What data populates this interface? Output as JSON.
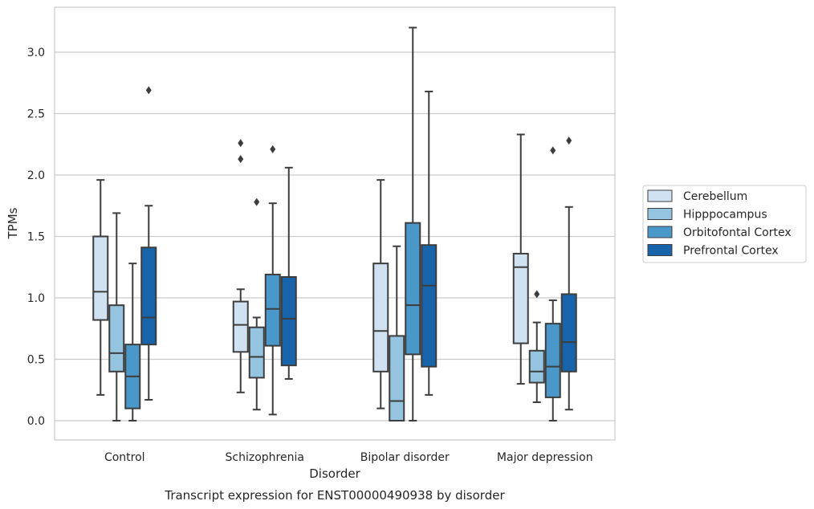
{
  "chart_data": {
    "type": "box",
    "title": "Transcript expression for ENST00000490938 by disorder",
    "xlabel": "Disorder",
    "ylabel": "TPMs",
    "ylim": [
      -0.15,
      3.35
    ],
    "yticks": [
      "0.0",
      "0.5",
      "1.0",
      "1.5",
      "2.0",
      "2.5",
      "3.0"
    ],
    "grid": "horizontal",
    "legend_position": "right",
    "categories": [
      "Control",
      "Schizophrenia",
      "Bipolar disorder",
      "Major depression"
    ],
    "series": [
      {
        "name": "Cerebellum",
        "color": "#d0e1f2",
        "boxes": [
          {
            "whislo": 0.21,
            "q1": 0.82,
            "med": 1.05,
            "q3": 1.5,
            "whishi": 1.96,
            "fliers": []
          },
          {
            "whislo": 0.23,
            "q1": 0.56,
            "med": 0.78,
            "q3": 0.97,
            "whishi": 1.07,
            "fliers": [
              2.13,
              2.26
            ]
          },
          {
            "whislo": 0.1,
            "q1": 0.4,
            "med": 0.73,
            "q3": 1.28,
            "whishi": 1.96,
            "fliers": []
          },
          {
            "whislo": 0.3,
            "q1": 0.63,
            "med": 1.25,
            "q3": 1.36,
            "whishi": 2.33,
            "fliers": []
          }
        ]
      },
      {
        "name": "Hipppocampus",
        "color": "#94c4df",
        "boxes": [
          {
            "whislo": 0.0,
            "q1": 0.4,
            "med": 0.55,
            "q3": 0.94,
            "whishi": 1.69,
            "fliers": []
          },
          {
            "whislo": 0.09,
            "q1": 0.35,
            "med": 0.52,
            "q3": 0.76,
            "whishi": 0.84,
            "fliers": [
              1.78
            ]
          },
          {
            "whislo": 0.0,
            "q1": 0.0,
            "med": 0.16,
            "q3": 0.69,
            "whishi": 1.42,
            "fliers": []
          },
          {
            "whislo": 0.15,
            "q1": 0.31,
            "med": 0.4,
            "q3": 0.57,
            "whishi": 0.8,
            "fliers": [
              1.03
            ]
          }
        ]
      },
      {
        "name": "Orbitofontal Cortex",
        "color": "#4a98c9",
        "boxes": [
          {
            "whislo": 0.0,
            "q1": 0.1,
            "med": 0.36,
            "q3": 0.62,
            "whishi": 1.28,
            "fliers": []
          },
          {
            "whislo": 0.05,
            "q1": 0.61,
            "med": 0.91,
            "q3": 1.19,
            "whishi": 1.77,
            "fliers": [
              2.21
            ]
          },
          {
            "whislo": 0.0,
            "q1": 0.54,
            "med": 0.94,
            "q3": 1.61,
            "whishi": 3.2,
            "fliers": []
          },
          {
            "whislo": 0.0,
            "q1": 0.19,
            "med": 0.44,
            "q3": 0.79,
            "whishi": 0.98,
            "fliers": [
              2.2
            ]
          }
        ]
      },
      {
        "name": "Prefrontal Cortex",
        "color": "#1764ab",
        "boxes": [
          {
            "whislo": 0.17,
            "q1": 0.62,
            "med": 0.84,
            "q3": 1.41,
            "whishi": 1.75,
            "fliers": [
              2.69
            ]
          },
          {
            "whislo": 0.34,
            "q1": 0.45,
            "med": 0.83,
            "q3": 1.17,
            "whishi": 2.06,
            "fliers": []
          },
          {
            "whislo": 0.21,
            "q1": 0.44,
            "med": 1.1,
            "q3": 1.43,
            "whishi": 2.68,
            "fliers": []
          },
          {
            "whislo": 0.09,
            "q1": 0.4,
            "med": 0.64,
            "q3": 1.03,
            "whishi": 1.74,
            "fliers": [
              2.28
            ]
          }
        ]
      }
    ]
  }
}
